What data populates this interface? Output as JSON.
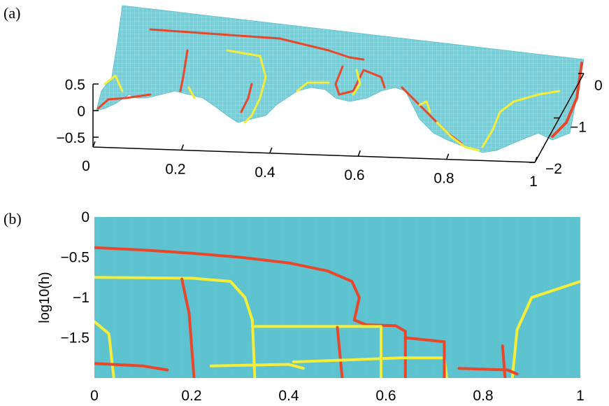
{
  "figure": {
    "panel_labels": [
      "(a)",
      "(b)"
    ]
  },
  "colors": {
    "surface": "#5fc3cf",
    "mesh": "#8dd9e2",
    "red_curve": "#e8472a",
    "yellow_curve": "#f4ee3a",
    "axis": "#000000"
  },
  "chart_data": [
    {
      "panel": "(a)",
      "type": "surface",
      "title": "",
      "xlabel": "",
      "ylabel": "",
      "zlabel": "",
      "x_ticks": [
        "0",
        "0.2",
        "0.4",
        "0.6",
        "0.8",
        "1"
      ],
      "y_ticks": [
        "0",
        "−1",
        "−2"
      ],
      "z_ticks": [
        "0.5",
        "0",
        "−0.5"
      ],
      "xlim": [
        0,
        1
      ],
      "ylim": [
        -2,
        0
      ],
      "zlim": [
        -0.5,
        0.5
      ]
    },
    {
      "panel": "(b)",
      "type": "heatmap",
      "title": "",
      "xlabel": "",
      "ylabel": "log10(h)",
      "x_ticks": [
        "0",
        "0.2",
        "0.4",
        "0.6",
        "0.8",
        "1"
      ],
      "y_ticks": [
        "0",
        "−0.5",
        "−1",
        "−1.5"
      ],
      "xlim": [
        0,
        1
      ],
      "ylim": [
        -2,
        0
      ],
      "series": [
        {
          "name": "",
          "color": "red",
          "points": [
            [
              0,
              -0.38
            ],
            [
              0.1,
              -0.41
            ],
            [
              0.2,
              -0.45
            ],
            [
              0.3,
              -0.5
            ],
            [
              0.4,
              -0.57
            ],
            [
              0.48,
              -0.67
            ],
            [
              0.53,
              -0.8
            ],
            [
              0.545,
              -1.0
            ],
            [
              0.535,
              -1.28
            ],
            [
              0.56,
              -1.34
            ],
            [
              0.62,
              -1.35
            ],
            [
              0.64,
              -1.42
            ],
            [
              0.64,
              -2.0
            ]
          ]
        },
        {
          "name": "",
          "color": "yellow",
          "points": [
            [
              0,
              -0.75
            ],
            [
              0.2,
              -0.76
            ],
            [
              0.28,
              -0.8
            ],
            [
              0.31,
              -1.0
            ],
            [
              0.325,
              -1.28
            ],
            [
              0.33,
              -2.0
            ]
          ]
        },
        {
          "name": "",
          "color": "red",
          "points": [
            [
              0.18,
              -0.77
            ],
            [
              0.195,
              -1.2
            ],
            [
              0.205,
              -2.0
            ]
          ]
        },
        {
          "name": "",
          "color": "yellow",
          "points": [
            [
              0.325,
              -1.36
            ],
            [
              0.59,
              -1.36
            ],
            [
              0.59,
              -2.0
            ]
          ]
        },
        {
          "name": "",
          "color": "red",
          "points": [
            [
              0.5,
              -1.37
            ],
            [
              0.51,
              -2.0
            ]
          ]
        },
        {
          "name": "",
          "color": "yellow",
          "points": [
            [
              0.41,
              -1.8
            ],
            [
              0.5,
              -1.78
            ],
            [
              0.63,
              -1.75
            ],
            [
              0.72,
              -1.75
            ],
            [
              0.725,
              -2.0
            ]
          ]
        },
        {
          "name": "",
          "color": "red",
          "points": [
            [
              0.64,
              -1.5
            ],
            [
              0.72,
              -1.55
            ],
            [
              0.72,
              -2.0
            ]
          ]
        },
        {
          "name": "",
          "color": "yellow",
          "points": [
            [
              0.24,
              -1.85
            ],
            [
              0.4,
              -1.83
            ],
            [
              0.43,
              -1.88
            ]
          ]
        },
        {
          "name": "",
          "color": "yellow",
          "points": [
            [
              0,
              -1.3
            ],
            [
              0.03,
              -1.45
            ],
            [
              0.04,
              -2.0
            ]
          ]
        },
        {
          "name": "",
          "color": "red",
          "points": [
            [
              0,
              -1.82
            ],
            [
              0.1,
              -1.85
            ],
            [
              0.15,
              -1.9
            ]
          ]
        },
        {
          "name": "",
          "color": "yellow",
          "points": [
            [
              1,
              -0.8
            ],
            [
              0.9,
              -1.0
            ],
            [
              0.87,
              -1.4
            ],
            [
              0.86,
              -2.0
            ]
          ]
        },
        {
          "name": "",
          "color": "red",
          "points": [
            [
              0.75,
              -1.88
            ],
            [
              0.85,
              -1.9
            ],
            [
              0.87,
              -1.95
            ]
          ]
        },
        {
          "name": "",
          "color": "red",
          "points": [
            [
              0.84,
              -1.6
            ],
            [
              0.845,
              -2.0
            ]
          ]
        }
      ]
    }
  ]
}
